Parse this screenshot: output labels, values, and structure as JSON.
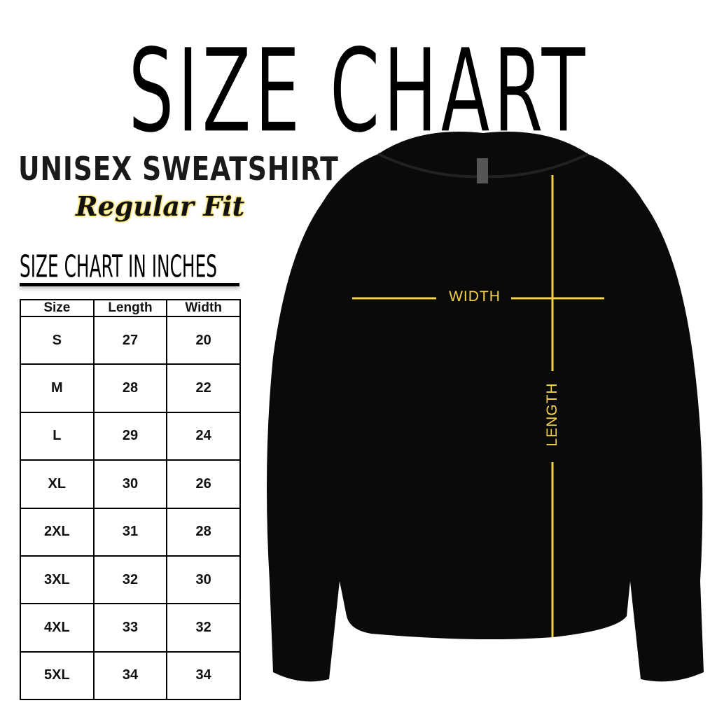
{
  "title": "SIZE CHART",
  "product": "UNISEX SWEATSHIRT",
  "fit": "Regular Fit",
  "unit_heading": "SIZE CHART IN INCHES",
  "table": {
    "headers": [
      "Size",
      "Length",
      "Width"
    ],
    "rows": [
      [
        "S",
        "27",
        "20"
      ],
      [
        "M",
        "28",
        "22"
      ],
      [
        "L",
        "29",
        "24"
      ],
      [
        "XL",
        "30",
        "26"
      ],
      [
        "2XL",
        "31",
        "28"
      ],
      [
        "3XL",
        "32",
        "30"
      ],
      [
        "4XL",
        "33",
        "32"
      ],
      [
        "5XL",
        "34",
        "34"
      ]
    ]
  },
  "diagram": {
    "width_label": "WIDTH",
    "length_label": "LENGTH",
    "line_color": "#f4d34b",
    "garment_color": "#0a0a0a"
  }
}
